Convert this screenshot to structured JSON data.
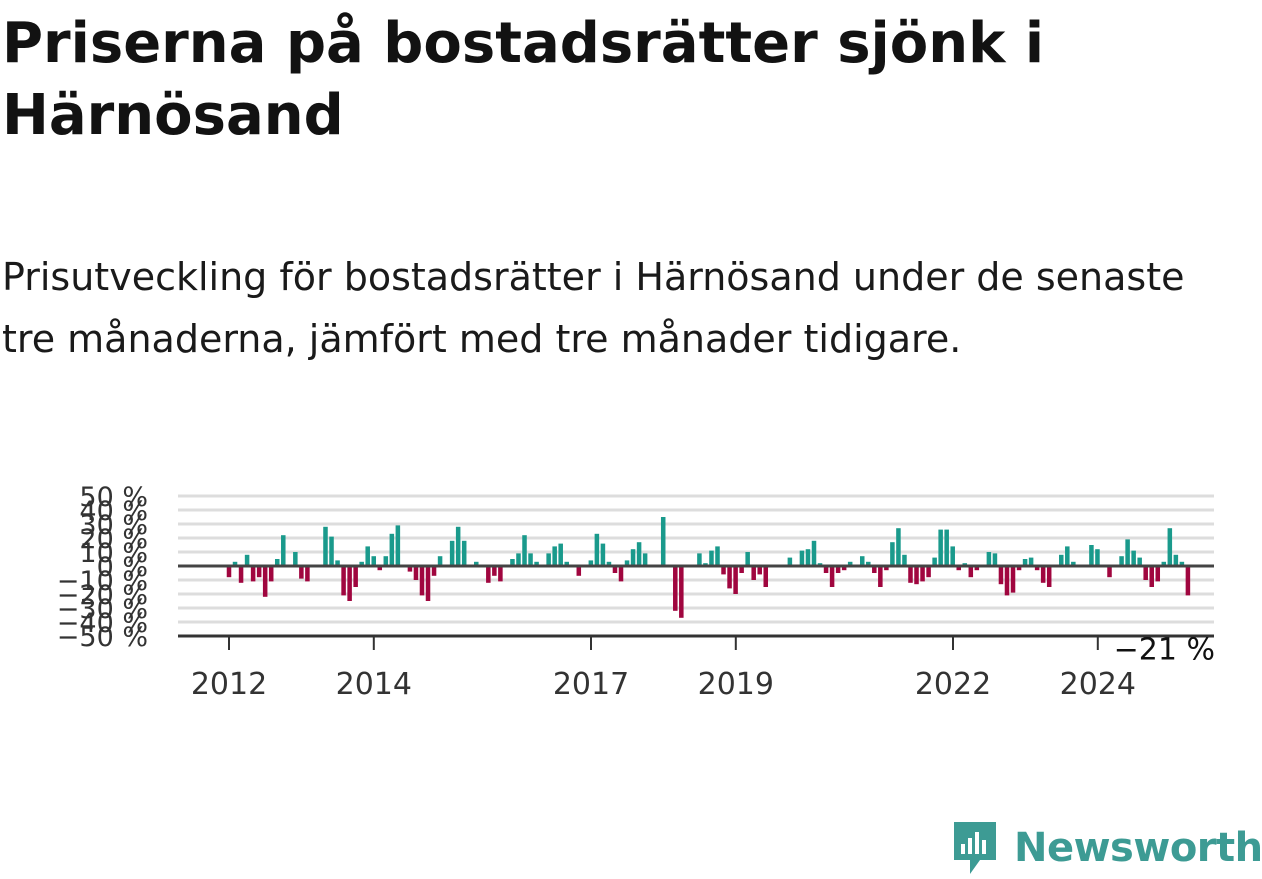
{
  "title": "Priserna på bostadsrätter sjönk i Härnösand",
  "subtitle": "Prisutveckling för bostadsrätter i Härnösand under de senaste tre månaderna, jämfört med tre månader tidigare.",
  "brand": {
    "name": "Newsworthy"
  },
  "colors": {
    "positive": "#1a9a8c",
    "negative": "#a0063f",
    "zero_line": "#444444",
    "grid": "#dddddd",
    "brand": "#3d9b94"
  },
  "chart_data": {
    "type": "bar",
    "ylim": [
      -50,
      50
    ],
    "grid": true,
    "y_ticks": [
      "50 %",
      "40 %",
      "30 %",
      "20 %",
      "10 %",
      "0 %",
      "−10 %",
      "−20 %",
      "−30 %",
      "−40 %",
      "−50 %"
    ],
    "x_ticks": [
      "2012",
      "2014",
      "2017",
      "2019",
      "2022",
      "2024"
    ],
    "x_tick_positions": [
      2012.0,
      2014.0,
      2017.0,
      2019.0,
      2022.0,
      2024.0
    ],
    "x_start": 2012.0,
    "x_step": 0.0833,
    "annotation": {
      "text": "−21 %",
      "value": -21
    },
    "values": [
      -8,
      3,
      -12,
      8,
      -11,
      -8,
      -22,
      -11,
      5,
      22,
      0,
      10,
      -9,
      -11,
      0,
      0,
      28,
      21,
      4,
      -21,
      -25,
      -15,
      3,
      14,
      7,
      -3,
      7,
      23,
      29,
      0,
      -4,
      -10,
      -21,
      -25,
      -7,
      7,
      0,
      18,
      28,
      18,
      0,
      3,
      0,
      -12,
      -7,
      -11,
      0,
      5,
      9,
      22,
      9,
      3,
      0,
      9,
      14,
      16,
      3,
      0,
      -7,
      0,
      4,
      23,
      16,
      3,
      -5,
      -11,
      4,
      12,
      17,
      9,
      0,
      0,
      35,
      0,
      -32,
      -37,
      0,
      0,
      9,
      2,
      11,
      14,
      -6,
      -16,
      -20,
      -5,
      10,
      -10,
      -6,
      -15,
      0,
      0,
      0,
      6,
      0,
      11,
      12,
      18,
      2,
      -5,
      -15,
      -5,
      -3,
      3,
      0,
      7,
      3,
      -5,
      -15,
      -3,
      17,
      27,
      8,
      -12,
      -13,
      -11,
      -8,
      6,
      26,
      26,
      14,
      -3,
      2,
      -8,
      -3,
      0,
      10,
      9,
      -13,
      -21,
      -19,
      -3,
      5,
      6,
      -3,
      -12,
      -15,
      0,
      8,
      14,
      3,
      -1,
      0,
      15,
      12,
      0,
      -8,
      0,
      7,
      19,
      11,
      6,
      -10,
      -15,
      -11,
      3,
      27,
      8,
      3,
      -21
    ]
  }
}
